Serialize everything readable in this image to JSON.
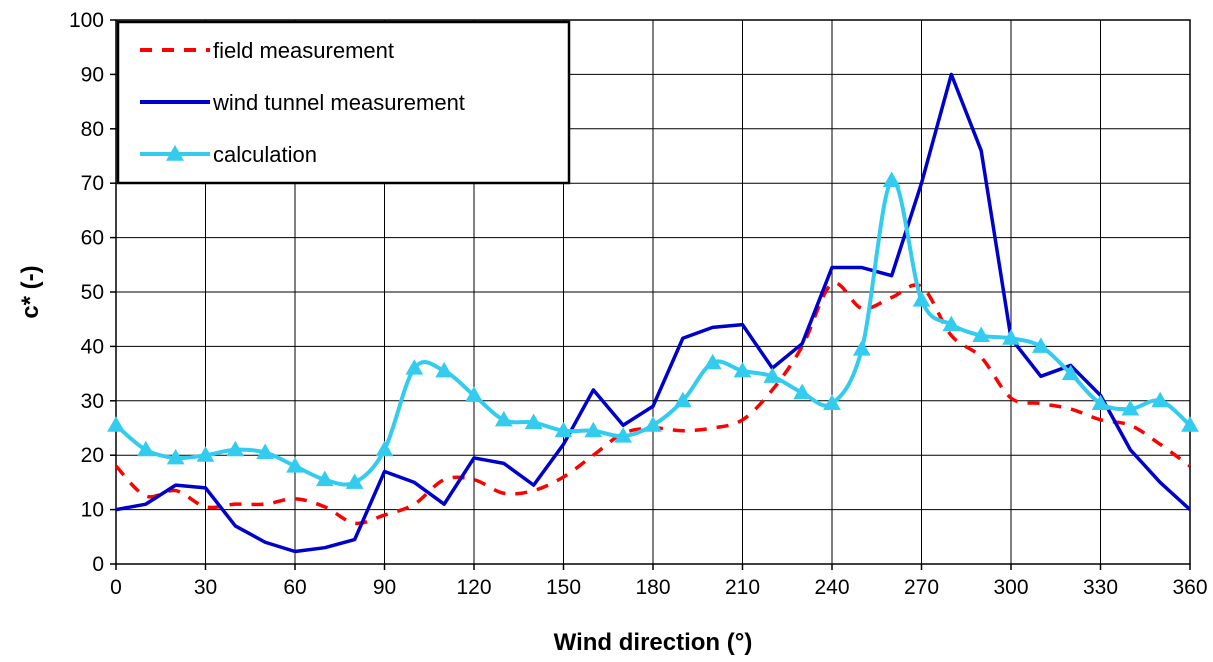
{
  "chart_data": {
    "type": "line",
    "xlabel": "Wind direction (°)",
    "ylabel": "c* (-)",
    "xlim": [
      0,
      360
    ],
    "ylim": [
      0,
      100
    ],
    "x_ticks": [
      0,
      30,
      60,
      90,
      120,
      150,
      180,
      210,
      240,
      270,
      300,
      330,
      360
    ],
    "y_ticks": [
      0,
      10,
      20,
      30,
      40,
      50,
      60,
      70,
      80,
      90,
      100
    ],
    "grid": true,
    "legend_position": "top-left",
    "x": [
      0,
      10,
      20,
      30,
      40,
      50,
      60,
      70,
      80,
      90,
      100,
      110,
      120,
      130,
      140,
      150,
      160,
      170,
      180,
      190,
      200,
      210,
      220,
      230,
      240,
      250,
      260,
      270,
      280,
      290,
      300,
      310,
      320,
      330,
      340,
      350,
      360
    ],
    "series": [
      {
        "name": "field measurement",
        "color": "#ff0000",
        "style": "dashed",
        "marker": "none",
        "values": [
          18,
          12.5,
          13.5,
          10.5,
          11,
          11,
          12,
          10.5,
          7.5,
          9,
          11,
          15.5,
          15.5,
          13,
          13.5,
          16,
          20,
          24,
          25,
          24.5,
          25,
          26.5,
          32,
          40,
          51.5,
          47,
          49,
          51,
          42,
          38,
          30.5,
          29.5,
          28.5,
          26.5,
          25.5,
          22,
          18
        ]
      },
      {
        "name": "wind tunnel measurement",
        "color": "#0000cc",
        "style": "solid",
        "marker": "none",
        "values": [
          10,
          11,
          14.5,
          14,
          7,
          4,
          2.3,
          3,
          4.5,
          17,
          15,
          11,
          19.5,
          18.5,
          14.5,
          22,
          32,
          25.5,
          29,
          41.5,
          43.5,
          44,
          36,
          40.5,
          54.5,
          54.5,
          53,
          70,
          90,
          76,
          41.5,
          34.5,
          36.5,
          31,
          21,
          15,
          10
        ]
      },
      {
        "name": "calculation",
        "color": "#33ccee",
        "style": "solid",
        "marker": "triangle",
        "values": [
          25.5,
          21,
          19.5,
          20,
          21,
          20.5,
          18,
          15.5,
          15,
          21,
          36,
          35.5,
          31,
          26.5,
          26,
          24.5,
          24.5,
          23.5,
          25.5,
          30,
          37,
          35.5,
          34.5,
          31.5,
          29.5,
          39.5,
          70.5,
          48.5,
          44,
          42,
          41.5,
          40,
          35,
          29.5,
          28.5,
          30,
          25.5
        ]
      }
    ]
  }
}
